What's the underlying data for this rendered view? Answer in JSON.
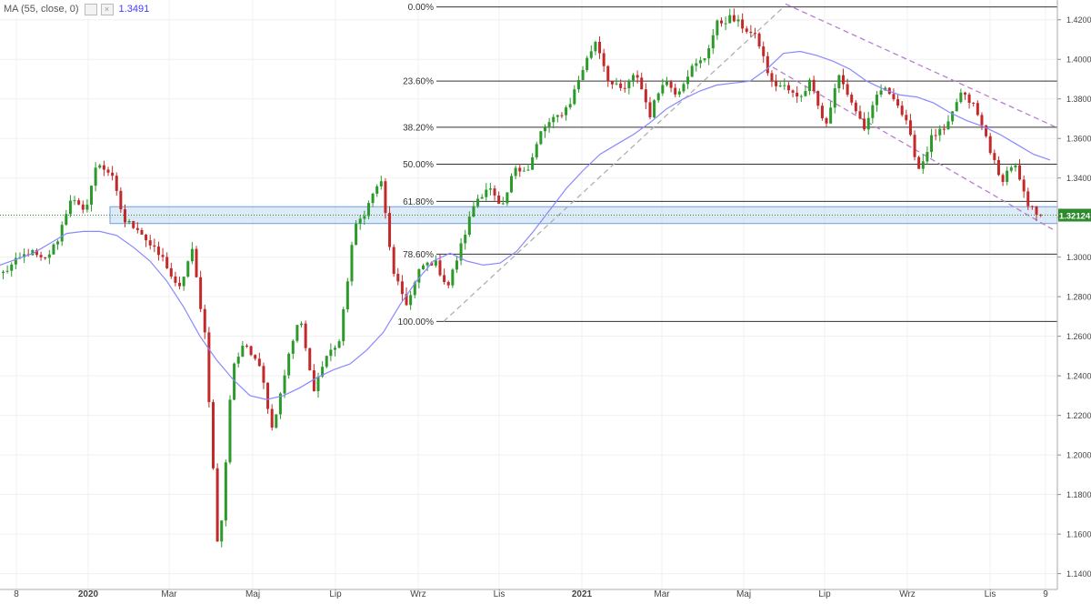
{
  "indicator": {
    "label": "MA (55, close, 0)",
    "value": "1.3491",
    "color": "#8888ff"
  },
  "chart_data": {
    "type": "candlestick",
    "price_axis": {
      "ticks": [
        "1.42000",
        "1.40000",
        "1.38000",
        "1.36000",
        "1.34000",
        "1.32000",
        "1.30000",
        "1.28000",
        "1.26000",
        "1.24000",
        "1.22000",
        "1.20000",
        "1.18000",
        "1.16000",
        "1.14000"
      ],
      "ylim": [
        1.132,
        1.43
      ]
    },
    "time_axis": {
      "ticks": [
        "8",
        "2020",
        "Mar",
        "Maj",
        "Lip",
        "Wrz",
        "Lis",
        "2021",
        "Mar",
        "Maj",
        "Lip",
        "Wrz",
        "Lis",
        "9"
      ],
      "bold_ticks": [
        "2020",
        "2021"
      ]
    },
    "last_price": {
      "label": "1.32124",
      "value": 1.32124,
      "color": "#2d8a2d"
    },
    "fibonacci": {
      "levels": [
        {
          "label": "0.00%",
          "price": 1.4265
        },
        {
          "label": "23.60%",
          "price": 1.389
        },
        {
          "label": "38.20%",
          "price": 1.3657
        },
        {
          "label": "50.00%",
          "price": 1.347
        },
        {
          "label": "61.80%",
          "price": 1.3282
        },
        {
          "label": "78.60%",
          "price": 1.3015
        },
        {
          "label": "100.00%",
          "price": 1.2675
        }
      ]
    },
    "support_zone": {
      "price_top": 1.3255,
      "price_bottom": 1.317,
      "color": "#9ec3ec"
    },
    "anchors": [
      {
        "price": 1.292
      },
      {
        "price": 1.298
      },
      {
        "price": 1.303
      },
      {
        "price": 1.2975
      },
      {
        "price": 1.308
      },
      {
        "price": 1.33
      },
      {
        "price": 1.322
      },
      {
        "price": 1.348
      },
      {
        "price": 1.342
      },
      {
        "price": 1.318
      },
      {
        "price": 1.315
      },
      {
        "price": 1.305
      },
      {
        "price": 1.298
      },
      {
        "price": 1.282
      },
      {
        "price": 1.304
      },
      {
        "price": 1.26
      },
      {
        "price": 1.145
      },
      {
        "price": 1.245
      },
      {
        "price": 1.256
      },
      {
        "price": 1.247
      },
      {
        "price": 1.213
      },
      {
        "price": 1.245
      },
      {
        "price": 1.27
      },
      {
        "price": 1.233
      },
      {
        "price": 1.25
      },
      {
        "price": 1.258
      },
      {
        "price": 1.313
      },
      {
        "price": 1.325
      },
      {
        "price": 1.34
      },
      {
        "price": 1.29
      },
      {
        "price": 1.276
      },
      {
        "price": 1.295
      },
      {
        "price": 1.298
      },
      {
        "price": 1.285
      },
      {
        "price": 1.306
      },
      {
        "price": 1.328
      },
      {
        "price": 1.336
      },
      {
        "price": 1.323
      },
      {
        "price": 1.346
      },
      {
        "price": 1.344
      },
      {
        "price": 1.365
      },
      {
        "price": 1.37
      },
      {
        "price": 1.377
      },
      {
        "price": 1.395
      },
      {
        "price": 1.41
      },
      {
        "price": 1.388
      },
      {
        "price": 1.384
      },
      {
        "price": 1.393
      },
      {
        "price": 1.372
      },
      {
        "price": 1.39
      },
      {
        "price": 1.383
      },
      {
        "price": 1.395
      },
      {
        "price": 1.4
      },
      {
        "price": 1.418
      },
      {
        "price": 1.421
      },
      {
        "price": 1.416
      },
      {
        "price": 1.41
      },
      {
        "price": 1.388
      },
      {
        "price": 1.386
      },
      {
        "price": 1.38
      },
      {
        "price": 1.39
      },
      {
        "price": 1.365
      },
      {
        "price": 1.392
      },
      {
        "price": 1.378
      },
      {
        "price": 1.364
      },
      {
        "price": 1.385
      },
      {
        "price": 1.383
      },
      {
        "price": 1.368
      },
      {
        "price": 1.344
      },
      {
        "price": 1.362
      },
      {
        "price": 1.364
      },
      {
        "price": 1.383
      },
      {
        "price": 1.377
      },
      {
        "price": 1.36
      },
      {
        "price": 1.338
      },
      {
        "price": 1.348
      },
      {
        "price": 1.326
      },
      {
        "price": 1.3212
      }
    ],
    "ma55": [
      1.296,
      1.299,
      1.302,
      1.307,
      1.312,
      1.313,
      1.313,
      1.311,
      1.305,
      1.298,
      1.288,
      1.275,
      1.26,
      1.248,
      1.238,
      1.23,
      1.228,
      1.23,
      1.234,
      1.239,
      1.243,
      1.246,
      1.253,
      1.262,
      1.276,
      1.288,
      1.298,
      1.302,
      1.298,
      1.296,
      1.297,
      1.303,
      1.313,
      1.324,
      1.335,
      1.344,
      1.352,
      1.357,
      1.362,
      1.368,
      1.375,
      1.38,
      1.384,
      1.387,
      1.388,
      1.389,
      1.395,
      1.403,
      1.404,
      1.402,
      1.399,
      1.395,
      1.389,
      1.385,
      1.382,
      1.381,
      1.378,
      1.373,
      1.369,
      1.366,
      1.362,
      1.357,
      1.352,
      1.3491
    ]
  }
}
